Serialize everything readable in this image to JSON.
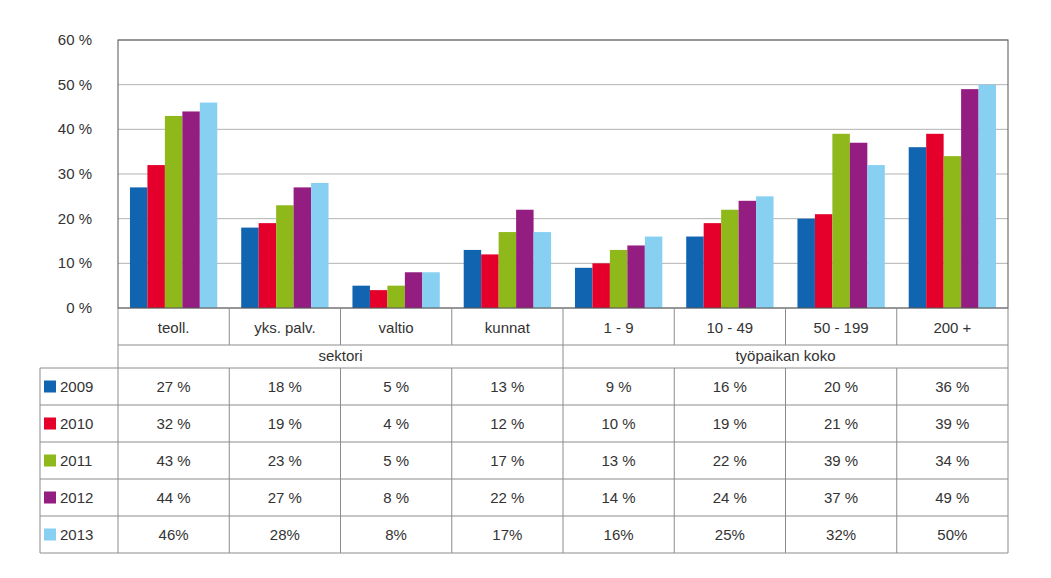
{
  "chart_data": {
    "type": "bar",
    "categories": [
      "teoll.",
      "yks. palv.",
      "valtio",
      "kunnat",
      "1 - 9",
      "10 - 49",
      "50 - 199",
      "200 +"
    ],
    "category_groups": [
      {
        "label": "sektori",
        "categories": [
          "teoll.",
          "yks. palv.",
          "valtio",
          "kunnat"
        ]
      },
      {
        "label": "työpaikan koko",
        "categories": [
          "1 - 9",
          "10 - 49",
          "50 - 199",
          "200 +"
        ]
      }
    ],
    "series": [
      {
        "name": "2009",
        "color": "#1164b0",
        "values": [
          27,
          18,
          5,
          13,
          9,
          16,
          20,
          36
        ],
        "value_labels": [
          "27 %",
          "18 %",
          "5 %",
          "13 %",
          "9 %",
          "16 %",
          "20 %",
          "36 %"
        ]
      },
      {
        "name": "2010",
        "color": "#e4002b",
        "values": [
          32,
          19,
          4,
          12,
          10,
          19,
          21,
          39
        ],
        "value_labels": [
          "32 %",
          "19 %",
          "4 %",
          "12 %",
          "10 %",
          "19 %",
          "21 %",
          "39 %"
        ]
      },
      {
        "name": "2011",
        "color": "#8fb81a",
        "values": [
          43,
          23,
          5,
          17,
          13,
          22,
          39,
          34
        ],
        "value_labels": [
          "43 %",
          "23 %",
          "5 %",
          "17 %",
          "13 %",
          "22 %",
          "39 %",
          "34 %"
        ]
      },
      {
        "name": "2012",
        "color": "#941d81",
        "values": [
          44,
          27,
          8,
          22,
          14,
          24,
          37,
          49
        ],
        "value_labels": [
          "44 %",
          "27 %",
          "8 %",
          "22 %",
          "14 %",
          "24 %",
          "37 %",
          "49 %"
        ]
      },
      {
        "name": "2013",
        "color": "#88d0f2",
        "values": [
          46,
          28,
          8,
          17,
          16,
          25,
          32,
          50
        ],
        "value_labels": [
          "46%",
          "28%",
          "8%",
          "17%",
          "16%",
          "25%",
          "32%",
          "50%"
        ]
      }
    ],
    "ylim": [
      0,
      60
    ],
    "yticks": [
      {
        "value": 0,
        "label": "0 %"
      },
      {
        "value": 10,
        "label": "10 %"
      },
      {
        "value": 20,
        "label": "20 %"
      },
      {
        "value": 30,
        "label": "30 %"
      },
      {
        "value": 40,
        "label": "40 %"
      },
      {
        "value": 50,
        "label": "50 %"
      },
      {
        "value": 60,
        "label": "60 %"
      }
    ],
    "grid": true
  }
}
